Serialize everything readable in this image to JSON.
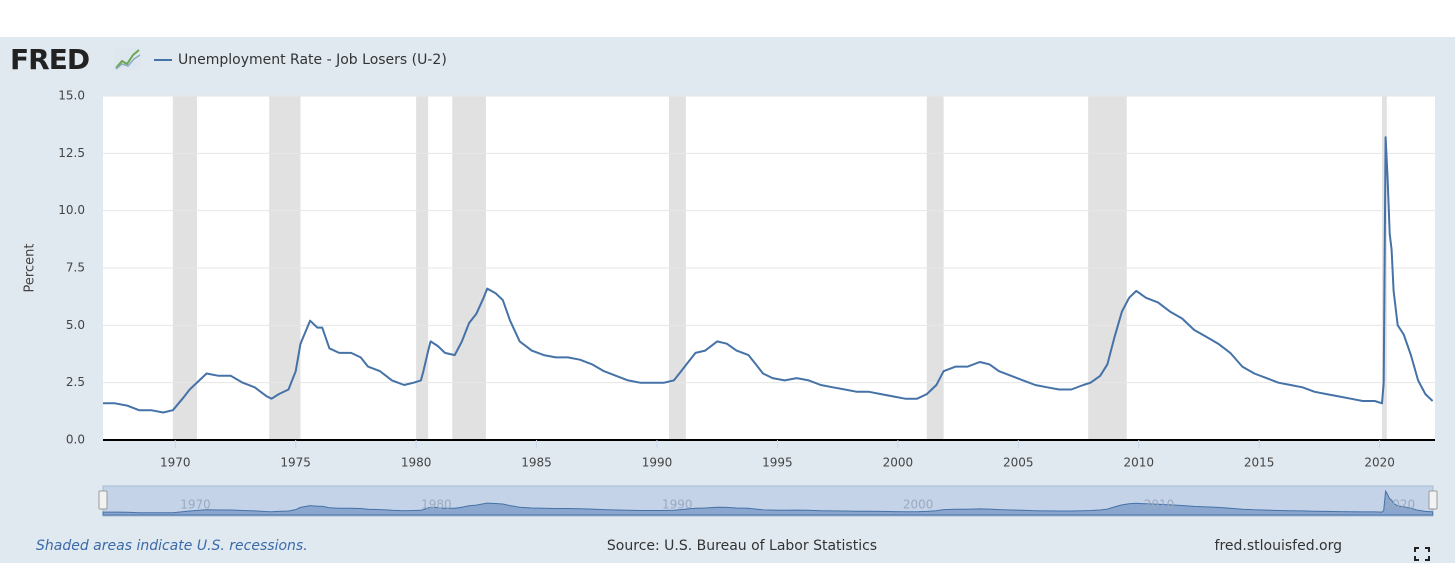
{
  "chart_data": {
    "type": "line",
    "logo": "FRED",
    "ylabel": "Percent",
    "footnote": "Shaded areas indicate U.S. recessions.",
    "source": "Source: U.S. Bureau of Labor Statistics",
    "site": "fred.stlouisfed.org",
    "x": [
      1967.0,
      1967.5,
      1968.0,
      1968.5,
      1969.0,
      1969.5,
      1969.9,
      1970.3,
      1970.6,
      1971.0,
      1971.3,
      1971.8,
      1972.3,
      1972.8,
      1973.3,
      1973.8,
      1974.0,
      1974.3,
      1974.7,
      1975.0,
      1975.2,
      1975.4,
      1975.6,
      1975.9,
      1976.1,
      1976.4,
      1976.8,
      1977.3,
      1977.7,
      1978.0,
      1978.5,
      1979.0,
      1979.5,
      1979.9,
      1980.2,
      1980.3,
      1980.5,
      1980.6,
      1980.9,
      1981.2,
      1981.6,
      1981.9,
      1982.2,
      1982.5,
      1982.8,
      1982.95,
      1983.3,
      1983.6,
      1983.9,
      1984.3,
      1984.8,
      1985.3,
      1985.8,
      1986.3,
      1986.8,
      1987.3,
      1987.8,
      1988.3,
      1988.8,
      1989.3,
      1989.8,
      1990.3,
      1990.7,
      1991.0,
      1991.3,
      1991.6,
      1992.0,
      1992.5,
      1992.9,
      1993.3,
      1993.8,
      1994.1,
      1994.4,
      1994.8,
      1995.3,
      1995.8,
      1996.3,
      1996.8,
      1997.3,
      1997.8,
      1998.3,
      1998.8,
      1999.3,
      1999.8,
      2000.3,
      2000.8,
      2001.2,
      2001.6,
      2001.9,
      2002.4,
      2002.9,
      2003.4,
      2003.8,
      2004.2,
      2004.7,
      2005.2,
      2005.7,
      2006.2,
      2006.7,
      2007.2,
      2007.7,
      2008.0,
      2008.4,
      2008.7,
      2009.0,
      2009.3,
      2009.6,
      2009.9,
      2010.3,
      2010.8,
      2011.3,
      2011.8,
      2012.3,
      2012.8,
      2013.3,
      2013.8,
      2014.3,
      2014.8,
      2015.3,
      2015.8,
      2016.3,
      2016.8,
      2017.3,
      2017.8,
      2018.3,
      2018.8,
      2019.3,
      2019.8,
      2020.1,
      2020.17,
      2020.25,
      2020.33,
      2020.42,
      2020.5,
      2020.58,
      2020.75,
      2021.0,
      2021.3,
      2021.6,
      2021.9,
      2022.2
    ],
    "series": [
      {
        "name": "Unemployment Rate - Job Losers (U-2)",
        "color": "#4572a7",
        "values": [
          1.6,
          1.6,
          1.5,
          1.3,
          1.3,
          1.2,
          1.3,
          1.8,
          2.2,
          2.6,
          2.9,
          2.8,
          2.8,
          2.5,
          2.3,
          1.9,
          1.8,
          2.0,
          2.2,
          3.0,
          4.2,
          4.7,
          5.2,
          4.9,
          4.9,
          4.0,
          3.8,
          3.8,
          3.6,
          3.2,
          3.0,
          2.6,
          2.4,
          2.5,
          2.6,
          3.0,
          3.9,
          4.3,
          4.1,
          3.8,
          3.7,
          4.3,
          5.1,
          5.5,
          6.2,
          6.6,
          6.4,
          6.1,
          5.2,
          4.3,
          3.9,
          3.7,
          3.6,
          3.6,
          3.5,
          3.3,
          3.0,
          2.8,
          2.6,
          2.5,
          2.5,
          2.5,
          2.6,
          3.0,
          3.4,
          3.8,
          3.9,
          4.3,
          4.2,
          3.9,
          3.7,
          3.3,
          2.9,
          2.7,
          2.6,
          2.7,
          2.6,
          2.4,
          2.3,
          2.2,
          2.1,
          2.1,
          2.0,
          1.9,
          1.8,
          1.8,
          2.0,
          2.4,
          3.0,
          3.2,
          3.2,
          3.4,
          3.3,
          3.0,
          2.8,
          2.6,
          2.4,
          2.3,
          2.2,
          2.2,
          2.4,
          2.5,
          2.8,
          3.3,
          4.5,
          5.6,
          6.2,
          6.5,
          6.2,
          6.0,
          5.6,
          5.3,
          4.8,
          4.5,
          4.2,
          3.8,
          3.2,
          2.9,
          2.7,
          2.5,
          2.4,
          2.3,
          2.1,
          2.0,
          1.9,
          1.8,
          1.7,
          1.7,
          1.6,
          2.5,
          13.2,
          11.5,
          9.0,
          8.3,
          6.5,
          5.0,
          4.6,
          3.7,
          2.6,
          2.0,
          1.7
        ]
      }
    ],
    "recessions": [
      [
        1969.9,
        1970.9
      ],
      [
        1973.9,
        1975.2
      ],
      [
        1980.0,
        1980.5
      ],
      [
        1981.5,
        1982.9
      ],
      [
        1990.5,
        1991.2
      ],
      [
        2001.2,
        2001.9
      ],
      [
        2007.9,
        2009.5
      ],
      [
        2020.1,
        2020.3
      ]
    ],
    "recession_color": "#e1e1e1",
    "xlim": [
      1967.0,
      2022.3
    ],
    "xticks": [
      1970,
      1975,
      1980,
      1985,
      1990,
      1995,
      2000,
      2005,
      2010,
      2015,
      2020
    ],
    "ylim": [
      0,
      15
    ],
    "yticks": [
      {
        "value": 0,
        "label": "0.0"
      },
      {
        "value": 2.5,
        "label": "2.5"
      },
      {
        "value": 5,
        "label": "5.0"
      },
      {
        "value": 7.5,
        "label": "7.5"
      },
      {
        "value": 10,
        "label": "10.0"
      },
      {
        "value": 12.5,
        "label": "12.5"
      },
      {
        "value": 15,
        "label": "15.0"
      }
    ],
    "grid": true,
    "navigator_ticks": [
      1970,
      1980,
      1990,
      2000,
      2010,
      2020
    ]
  }
}
